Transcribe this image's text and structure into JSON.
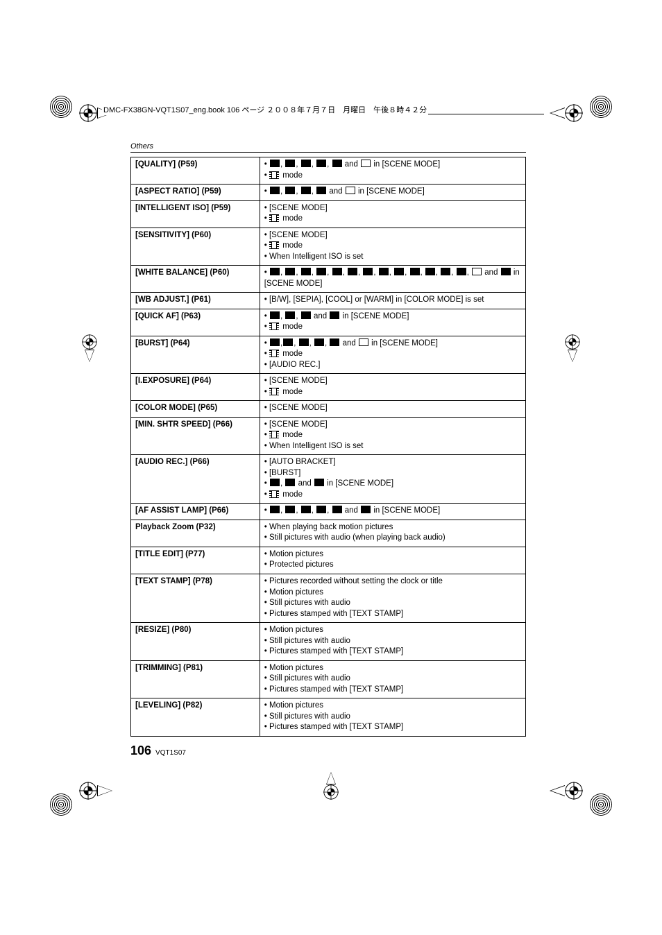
{
  "header": {
    "text": "DMC-FX38GN-VQT1S07_eng.book  106 ページ  ２００８年７月７日　月曜日　午後８時４２分"
  },
  "section_label": "Others",
  "rows": [
    {
      "label": "[QUALITY] (P59)",
      "cond_html": "•&nbsp;<span class='dark-icon'></span>, <span class='dark-icon'></span>, <span class='dark-icon'></span>, <span class='dark-icon'></span>, <span class='dark-icon'></span> and <span class='light-icon'></span> in [SCENE MODE]<br>•&nbsp;<span class='movie-icon'></span> mode"
    },
    {
      "label": "[ASPECT RATIO] (P59)",
      "cond_html": "•&nbsp;<span class='dark-icon'></span>, <span class='dark-icon'></span>, <span class='dark-icon'></span>, <span class='dark-icon'></span> and <span class='light-icon'></span> in [SCENE MODE]"
    },
    {
      "label": "[INTELLIGENT ISO] (P59)",
      "cond_html": "•&nbsp;[SCENE MODE]<br>•&nbsp;<span class='movie-icon'></span> mode"
    },
    {
      "label": "[SENSITIVITY] (P60)",
      "cond_html": "•&nbsp;[SCENE MODE]<br>•&nbsp;<span class='movie-icon'></span> mode<br>•&nbsp;When Intelligent ISO is set"
    },
    {
      "label": "[WHITE BALANCE] (P60)",
      "cond_html": "•&nbsp;<span class='dark-icon'></span>, <span class='dark-icon'></span>, <span class='dark-icon'></span>, <span class='dark-icon'></span>, <span class='dark-icon'></span>, <span class='dark-icon'></span>, <span class='dark-icon'></span>, <span class='dark-icon'></span>, <span class='dark-icon'></span>, <span class='dark-icon'></span>, <span class='dark-icon'></span>, <span class='dark-icon'></span>, <span class='dark-icon'></span>, <span class='light-icon'></span> and <span class='dark-icon'></span> in [SCENE MODE]"
    },
    {
      "label": "[WB ADJUST.] (P61)",
      "cond_html": "•&nbsp;[B/W], [SEPIA], [COOL] or [WARM] in [COLOR MODE] is set"
    },
    {
      "label": "[QUICK AF] (P63)",
      "cond_html": "•&nbsp;<span class='dark-icon'></span>, <span class='dark-icon'></span>, <span class='dark-icon'></span> and <span class='dark-icon'></span> in [SCENE MODE]<br>•&nbsp;<span class='movie-icon'></span> mode"
    },
    {
      "label": "[BURST] (P64)",
      "cond_html": "•&nbsp;<span class='dark-icon'></span>,<span class='dark-icon'></span>, <span class='dark-icon'></span>, <span class='dark-icon'></span>, <span class='dark-icon'></span> and <span class='light-icon'></span> in [SCENE MODE]<br>•&nbsp;<span class='movie-icon'></span> mode<br>•&nbsp;[AUDIO REC.]"
    },
    {
      "label": "[I.EXPOSURE] (P64)",
      "cond_html": "•&nbsp;[SCENE MODE]<br>•&nbsp;<span class='movie-icon'></span> mode"
    },
    {
      "label": "[COLOR MODE] (P65)",
      "cond_html": "•&nbsp;[SCENE MODE]"
    },
    {
      "label": "[MIN. SHTR SPEED] (P66)",
      "cond_html": "•&nbsp;[SCENE MODE]<br>•&nbsp;<span class='movie-icon'></span> mode<br>•&nbsp;When Intelligent ISO is set"
    },
    {
      "label": "[AUDIO REC.] (P66)",
      "cond_html": "•&nbsp;[AUTO BRACKET]<br>•&nbsp;[BURST]<br>•&nbsp;<span class='dark-icon'></span>, <span class='dark-icon'></span> and <span class='dark-icon'></span> in [SCENE MODE]<br>•&nbsp;<span class='movie-icon'></span> mode"
    },
    {
      "label": "[AF ASSIST LAMP] (P66)",
      "cond_html": "•&nbsp;<span class='dark-icon'></span>, <span class='dark-icon'></span>, <span class='dark-icon'></span>, <span class='dark-icon'></span>, <span class='dark-icon'></span> and <span class='dark-icon'></span> in [SCENE MODE]"
    },
    {
      "label": "Playback Zoom (P32)",
      "cond_html": "•&nbsp;When playing back motion pictures<br>•&nbsp;Still pictures with audio (when playing back audio)"
    },
    {
      "label": "[TITLE EDIT] (P77)",
      "cond_html": "•&nbsp;Motion pictures<br>•&nbsp;Protected pictures"
    },
    {
      "label": "[TEXT STAMP] (P78)",
      "cond_html": "•&nbsp;Pictures recorded without setting the clock or title<br>•&nbsp;Motion pictures<br>•&nbsp;Still pictures with audio<br>•&nbsp;Pictures stamped with [TEXT STAMP]"
    },
    {
      "label": "[RESIZE] (P80)",
      "cond_html": "•&nbsp;Motion pictures<br>•&nbsp;Still pictures with audio<br>•&nbsp;Pictures stamped with [TEXT STAMP]"
    },
    {
      "label": "[TRIMMING] (P81)",
      "cond_html": "•&nbsp;Motion pictures<br>•&nbsp;Still pictures with audio<br>•&nbsp;Pictures stamped with [TEXT STAMP]"
    },
    {
      "label": "[LEVELING] (P82)",
      "cond_html": "•&nbsp;Motion pictures<br>•&nbsp;Still pictures with audio<br>•&nbsp;Pictures stamped with [TEXT STAMP]"
    }
  ],
  "footer": {
    "page": "106",
    "doc": "VQT1S07"
  },
  "reg_svg": "<svg width='26' height='26' viewBox='0 0 26 26'><circle cx='13' cy='13' r='12' fill='none' stroke='#000' stroke-width='1'/><line x1='0' y1='13' x2='26' y2='13' stroke='#000' stroke-width='1'/><line x1='13' y1='0' x2='13' y2='26' stroke='#000' stroke-width='1'/><circle cx='13' cy='13' r='6' fill='none' stroke='#000' stroke-width='1'/><path d='M13 7 A6 6 0 0 1 19 13 L13 13 Z' fill='#000'/><path d='M13 19 A6 6 0 0 1 7 13 L13 13 Z' fill='#000'/></svg>",
  "reg_svg_small": "<svg width='22' height='22' viewBox='0 0 26 26'><circle cx='13' cy='13' r='12' fill='none' stroke='#000' stroke-width='1'/><line x1='0' y1='13' x2='26' y2='13' stroke='#000' stroke-width='1'/><line x1='13' y1='0' x2='13' y2='26' stroke='#000' stroke-width='1'/><circle cx='13' cy='13' r='6' fill='none' stroke='#000' stroke-width='1'/><path d='M13 7 A6 6 0 0 1 19 13 L13 13 Z' fill='#000'/><path d='M13 19 A6 6 0 0 1 7 13 L13 13 Z' fill='#000'/></svg>"
}
